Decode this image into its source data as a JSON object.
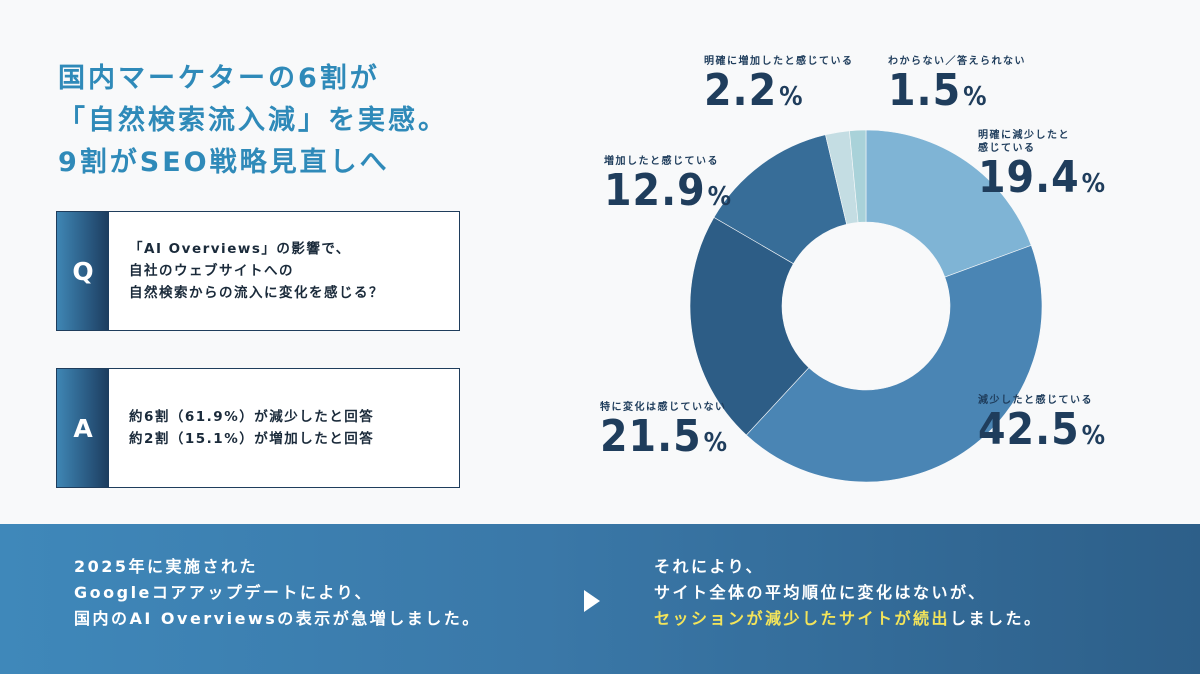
{
  "headline": {
    "line1": "国内マーケターの6割が",
    "line2": "「自然検索流入減」を実感。",
    "line3": "9割がSEO戦略見直しへ"
  },
  "question": {
    "letter": "Q",
    "line1": "「AI Overviews」の影響で、",
    "line2": "自社のウェブサイトへの",
    "line3": "自然検索からの流入に変化を感じる？"
  },
  "answer": {
    "letter": "A",
    "line1": "約6割（61.9%）が減少したと回答",
    "line2": "約2割（15.1%）が増加したと回答"
  },
  "chart_data": {
    "type": "pie",
    "slices": [
      {
        "label": "明確に減少したと感じている",
        "value": 19.4,
        "display": "19.4",
        "color": "#7fb4d5"
      },
      {
        "label": "減少したと感じている",
        "value": 42.5,
        "display": "42.5",
        "color": "#4a85b4"
      },
      {
        "label": "特に変化は感じていない",
        "value": 21.5,
        "display": "21.5",
        "color": "#2d5d86"
      },
      {
        "label": "増加したと感じている",
        "value": 12.9,
        "display": "12.9",
        "color": "#376d98"
      },
      {
        "label": "明確に増加したと感じている",
        "value": 2.2,
        "display": "2.2",
        "color": "#c4dde3"
      },
      {
        "label": "わからない／答えられない",
        "value": 1.5,
        "display": "1.5",
        "color": "#a9d2d9"
      }
    ],
    "unit": "%"
  },
  "labels": {
    "clear_up": {
      "cap": "明確に増加したと感じている",
      "val": "2.2",
      "unit": "%"
    },
    "unknown": {
      "cap": "わからない／答えられない",
      "val": "1.5",
      "unit": "%"
    },
    "clear_down": {
      "cap1": "明確に減少したと",
      "cap2": "感じている",
      "val": "19.4",
      "unit": "%"
    },
    "up": {
      "cap": "増加したと感じている",
      "val": "12.9",
      "unit": "%"
    },
    "down": {
      "cap": "減少したと感じている",
      "val": "42.5",
      "unit": "%"
    },
    "nochange": {
      "cap": "特に変化は感じていない",
      "val": "21.5",
      "unit": "%"
    }
  },
  "banner": {
    "left1": "2025年に実施された",
    "left2": "Googleコアアップデートにより、",
    "left3": "国内のAI Overviewsの表示が急増しました。",
    "right1": "それにより、",
    "right2": "サイト全体の平均順位に変化はないが、",
    "right3_highlight": "セッションが減少したサイトが続出",
    "right3_rest": "しました。"
  }
}
